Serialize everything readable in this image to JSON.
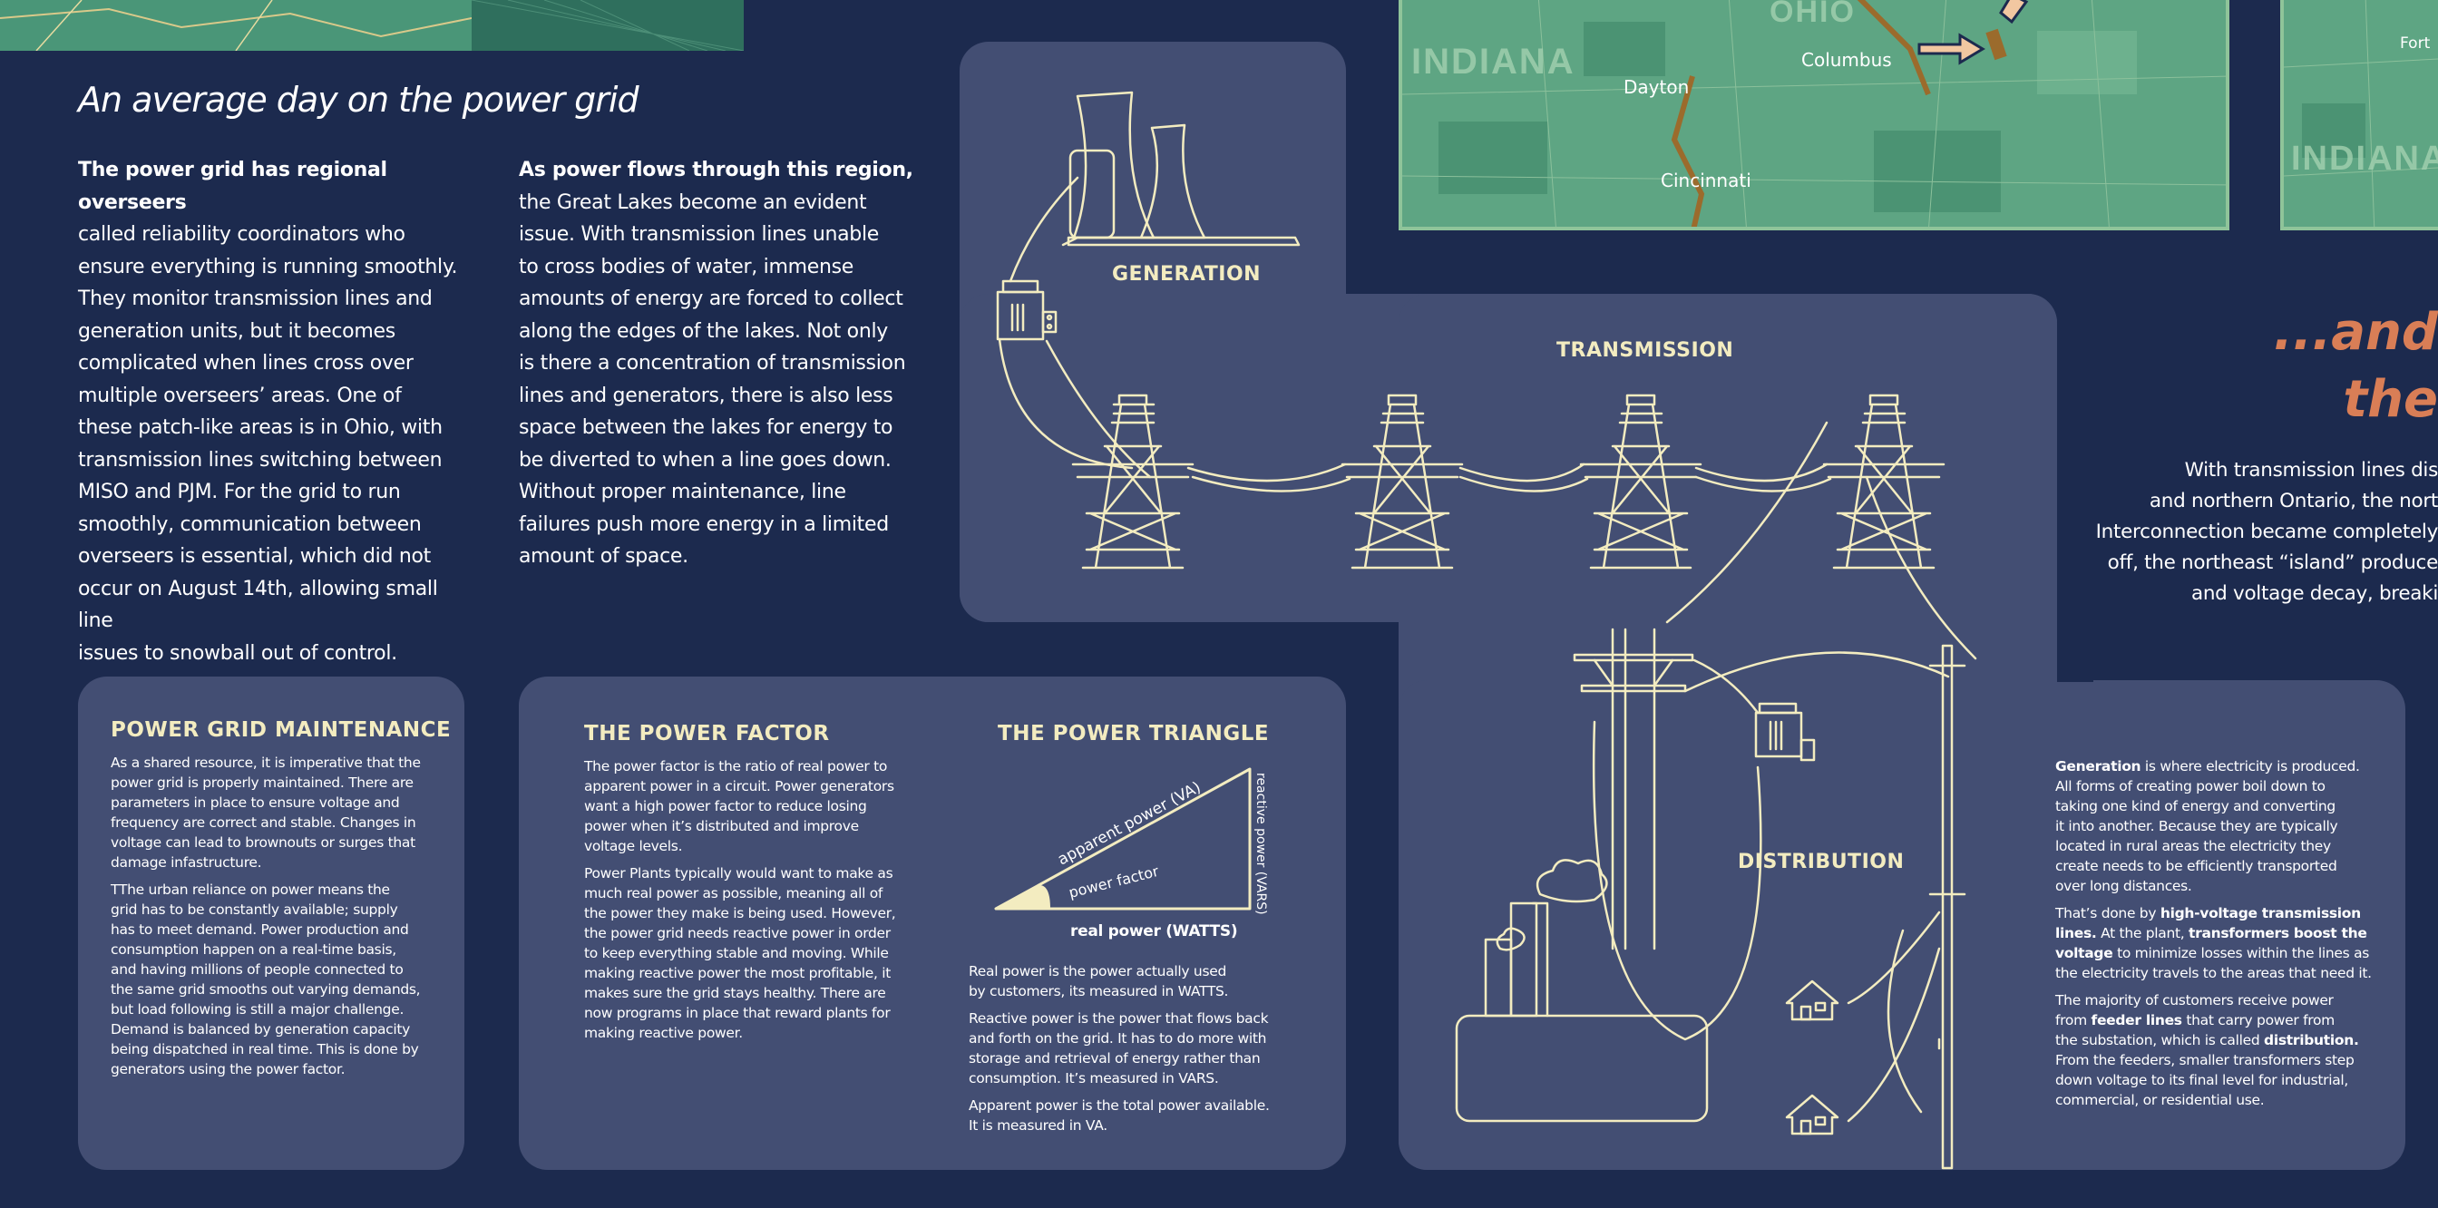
{
  "title": "An average day on the power grid",
  "col1": {
    "lead": "The power grid has regional overseers",
    "lines": [
      "called reliability coordinators who",
      "ensure everything is running smoothly.",
      "They monitor transmission lines and",
      "generation units, but it becomes",
      "complicated when lines cross over",
      "multiple overseers’ areas. One of",
      "these patch-like areas is in Ohio, with",
      "transmission lines switching between",
      "MISO and PJM. For the grid to run",
      "smoothly, communication between",
      "overseers is essential, which did not",
      "occur on August 14th, allowing small line",
      "issues to snowball out of control."
    ]
  },
  "col2": {
    "lead": "As power flows through this region,",
    "lines": [
      "the Great Lakes become an evident",
      "issue. With transmission lines unable",
      "to cross bodies of water, immense",
      "amounts of energy are forced to collect",
      "along the edges of the lakes. Not only",
      "is there a concentration of transmission",
      "lines and generators, there is also less",
      "space between the lakes for energy to",
      "be diverted to when a line goes down.",
      "Without proper maintenance, line",
      "failures push more energy in a limited",
      "amount of space."
    ]
  },
  "map": {
    "state1": "INDIANA",
    "state2": "OHIO",
    "state3": "INDIANA",
    "cities": {
      "dayton": "Dayton",
      "columbus": "Columbus",
      "cincinnati": "Cincinnati",
      "fort": "Fort"
    }
  },
  "diagram": {
    "generation": "GENERATION",
    "transmission": "TRANSMISSION",
    "distribution": "DISTRIBUTION"
  },
  "maintenance": {
    "title": "POWER GRID MAINTENANCE",
    "p1": [
      "As a shared resource, it is imperative that the",
      "power grid is properly maintained. There are",
      "parameters in place to ensure voltage and",
      "frequency are correct and stable. Changes in",
      "voltage can lead to brownouts or surges that",
      "damage infastructure."
    ],
    "p2": [
      "TThe urban reliance on power means the",
      "grid has to be constantly available; supply",
      "has to meet demand. Power production and",
      "consumption happen on a real-time basis,",
      "and having millions of people connected to",
      "the same grid smooths out varying demands,",
      "but load following is still a major challenge.",
      "Demand is balanced by generation capacity",
      "being dispatched in real time. This is done by",
      "generators using the power factor."
    ]
  },
  "power_factor": {
    "title": "THE POWER FACTOR",
    "p1": [
      "The power factor is the ratio of real power to",
      "apparent power in a circuit.  Power generators",
      "want a high power factor to reduce losing",
      "power when it’s distributed and improve",
      "voltage levels."
    ],
    "p2": [
      "Power Plants typically would want to make as",
      "much real power as possible, meaning all of",
      "the power they make is being used.  However,",
      "the power grid needs reactive power in order",
      "to keep everything stable and moving.  While",
      "making reactive power the most profitable, it",
      "makes sure the grid stays healthy.  There are",
      "now programs in place that reward plants for",
      "making reactive power."
    ]
  },
  "power_triangle": {
    "title": "THE POWER TRIANGLE",
    "apparent": "apparent power (VA)",
    "reactive": "reactive power (VARS)",
    "factor": "power factor",
    "real": "real power (WATTS)",
    "p1": [
      "Real power is the power actually used",
      "by customers, its measured in WATTS."
    ],
    "p2": [
      "Reactive power is the power that flows back",
      "and forth on the grid.  It has to do more with",
      "storage and retrieval of energy rather than",
      "consumption. It’s measured in VARS."
    ],
    "p3": [
      "Apparent power is the total power available.",
      "It is measured in VA."
    ]
  },
  "right_panel": {
    "heading1": "...and",
    "heading2": "the",
    "intro": [
      "With transmission lines dis",
      "and northern Ontario, the nort",
      "Interconnection became completely",
      "off, the northeast “island” produce",
      "and voltage decay, breaki"
    ],
    "gen_b": "Generation",
    "gen_lines": [
      " is where electricity is produced.",
      "All forms of creating power boil down to",
      "taking one kind of energy and converting",
      "it into another.  Because they are typically",
      "located in rural areas the electricity they",
      "create needs to be efficiently transported",
      "over long distances."
    ],
    "trans_pre": "That’s done by ",
    "trans_b1": "high-voltage transmission",
    "trans_b2": "lines.",
    "trans_mid": " At the plant, ",
    "trans_b3": "transformers boost the",
    "trans_b4": "voltage",
    "trans_rest": [
      " to minimize losses within the lines as",
      "the electricity travels to the areas that need it."
    ],
    "dist_1": "The majority of customers receive power",
    "dist_pre": "from ",
    "dist_b1": "feeder lines",
    "dist_mid": " that carry power from",
    "dist_2": "the substation, which is called ",
    "dist_b2": "distribution.",
    "dist_rest": [
      "From the feeders, smaller transformers step",
      "down voltage to its final level for industrial,",
      "commercial, or residential use."
    ]
  },
  "colors": {
    "background": "#1c2a4e",
    "panel": "#434e73",
    "cream": "#f3ecc0",
    "accent": "#d97e56",
    "map": "#5ea583"
  }
}
